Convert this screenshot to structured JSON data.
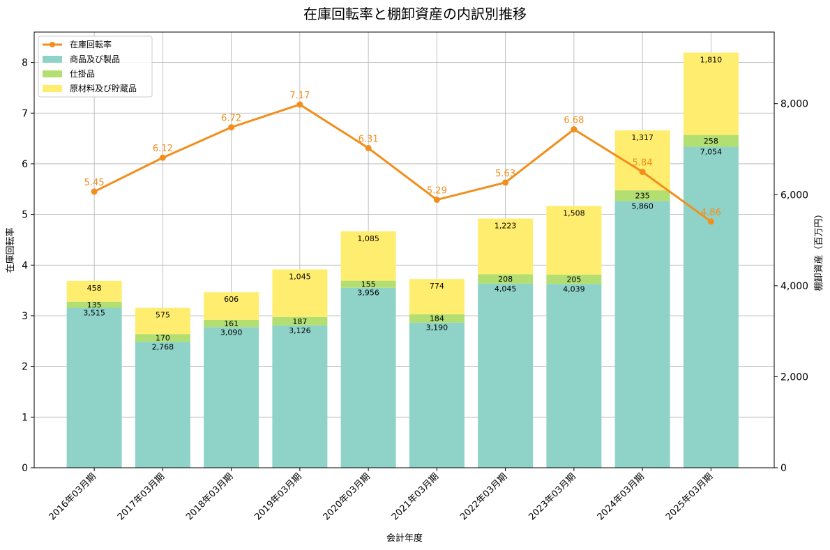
{
  "chart_data": {
    "type": "bar",
    "title": "在庫回転率と棚卸資産の内訳別推移",
    "xlabel": "会計年度",
    "ylabel_left": "在庫回転率",
    "ylabel_right": "棚卸資産（百万円）",
    "categories": [
      "2016年03月期",
      "2017年03月期",
      "2018年03月期",
      "2019年03月期",
      "2020年03月期",
      "2021年03月期",
      "2022年03月期",
      "2023年03月期",
      "2024年03月期",
      "2025年03月期"
    ],
    "series": [
      {
        "name": "商品及び製品",
        "axis": "right",
        "color": "#8fd3c8",
        "values": [
          3515,
          2768,
          3090,
          3126,
          3956,
          3190,
          4045,
          4039,
          5860,
          7054
        ],
        "labels": [
          "3,515",
          "2,768",
          "3,090",
          "3,126",
          "3,956",
          "3,190",
          "4,045",
          "4,039",
          "5,860",
          "7,054"
        ]
      },
      {
        "name": "仕掛品",
        "axis": "right",
        "color": "#b3df72",
        "values": [
          135,
          170,
          161,
          187,
          155,
          184,
          208,
          205,
          235,
          258
        ],
        "labels": [
          "135",
          "170",
          "161",
          "187",
          "155",
          "184",
          "208",
          "205",
          "235",
          "258"
        ]
      },
      {
        "name": "原材料及び貯蔵品",
        "axis": "right",
        "color": "#ffed6f",
        "values": [
          458,
          575,
          606,
          1045,
          1085,
          774,
          1223,
          1508,
          1317,
          1810
        ],
        "labels": [
          "458",
          "575",
          "606",
          "1,045",
          "1,085",
          "774",
          "1,223",
          "1,508",
          "1,317",
          "1,810"
        ]
      },
      {
        "name": "在庫回転率",
        "axis": "left",
        "type": "line",
        "color": "#f28e1c",
        "values": [
          5.45,
          6.12,
          6.72,
          7.17,
          6.31,
          5.29,
          5.63,
          6.68,
          5.84,
          4.86
        ],
        "labels": [
          "5.45",
          "6.12",
          "6.72",
          "7.17",
          "6.31",
          "5.29",
          "5.63",
          "6.68",
          "5.84",
          "4.86"
        ]
      }
    ],
    "ylim_left": [
      0,
      8.6
    ],
    "ylim_right": [
      0,
      9573
    ],
    "yticks_left": [
      "0",
      "1",
      "2",
      "3",
      "4",
      "5",
      "6",
      "7",
      "8"
    ],
    "yticks_right": [
      "0",
      "2,000",
      "4,000",
      "6,000",
      "8,000"
    ],
    "grid": true,
    "legend": "top-left",
    "legend_order": [
      "在庫回転率",
      "商品及び製品",
      "仕掛品",
      "原材料及び貯蔵品"
    ]
  }
}
